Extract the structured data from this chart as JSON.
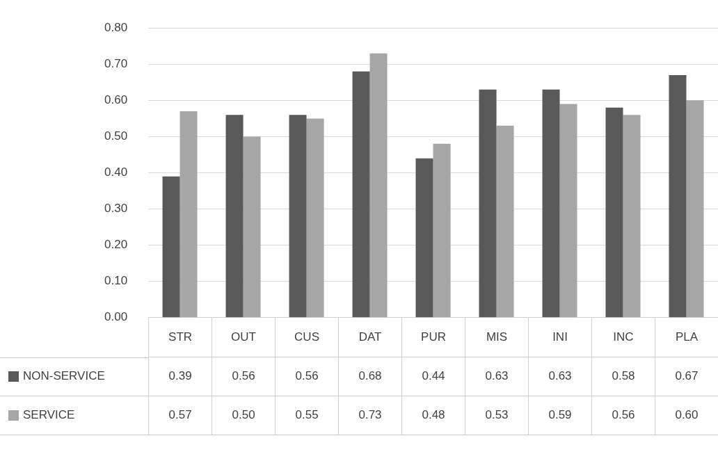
{
  "chart_data": {
    "type": "bar",
    "categories": [
      "STR",
      "OUT",
      "CUS",
      "DAT",
      "PUR",
      "MIS",
      "INI",
      "INC",
      "PLA"
    ],
    "series": [
      {
        "name": "NON-SERVICE",
        "color": "#595959",
        "values": [
          0.39,
          0.56,
          0.56,
          0.68,
          0.44,
          0.63,
          0.63,
          0.58,
          0.67
        ],
        "value_labels": [
          "0.39",
          "0.56",
          "0.56",
          "0.68",
          "0.44",
          "0.63",
          "0.63",
          "0.58",
          "0.67"
        ]
      },
      {
        "name": "SERVICE",
        "color": "#a6a6a6",
        "values": [
          0.57,
          0.5,
          0.55,
          0.73,
          0.48,
          0.53,
          0.59,
          0.56,
          0.6
        ],
        "value_labels": [
          "0.57",
          "0.50",
          "0.55",
          "0.73",
          "0.48",
          "0.53",
          "0.59",
          "0.56",
          "0.60"
        ]
      }
    ],
    "ylim": [
      0,
      0.8
    ],
    "yticks": [
      {
        "value": 0,
        "label": "0.00"
      },
      {
        "value": 0.1,
        "label": "0.10"
      },
      {
        "value": 0.2,
        "label": "0.20"
      },
      {
        "value": 0.3,
        "label": "0.30"
      },
      {
        "value": 0.4,
        "label": "0.40"
      },
      {
        "value": 0.5,
        "label": "0.50"
      },
      {
        "value": 0.6,
        "label": "0.60"
      },
      {
        "value": 0.7,
        "label": "0.70"
      },
      {
        "value": 0.8,
        "label": "0.80"
      }
    ],
    "grid": "y",
    "legend": "bottom"
  }
}
